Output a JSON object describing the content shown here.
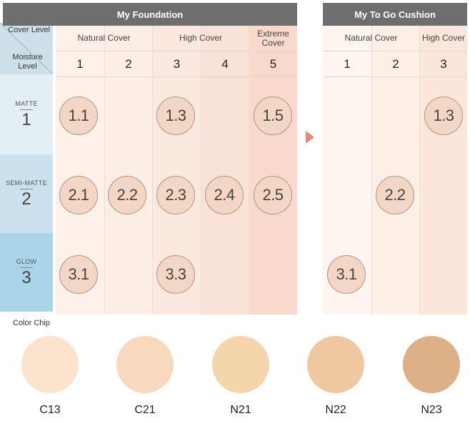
{
  "foundation": {
    "title": "My Foundation",
    "cover_groups": [
      "Natural Cover",
      "High Cover",
      "Extreme Cover"
    ],
    "cover_levels": [
      "1",
      "2",
      "3",
      "4",
      "5"
    ],
    "circles": [
      "1.1",
      "1.3",
      "1.5",
      "2.1",
      "2.2",
      "2.3",
      "2.4",
      "2.5",
      "3.1",
      "3.3"
    ]
  },
  "corner": {
    "cover_label": "Cover Level",
    "moisture_label": "Moisture Level"
  },
  "moisture": [
    {
      "name": "MATTE",
      "level": "1"
    },
    {
      "name": "SEMI-MATTE",
      "level": "2"
    },
    {
      "name": "GLOW",
      "level": "3"
    }
  ],
  "cushion": {
    "title": "My To Go Cushion",
    "cover_groups": [
      "Natural Cover",
      "High Cover"
    ],
    "cover_levels": [
      "1",
      "2",
      "3"
    ],
    "circles": [
      "1.3",
      "2.2",
      "3.1"
    ]
  },
  "color_chip": {
    "title": "Color Chip",
    "chips": [
      {
        "label": "C13",
        "color": "#fbe3ce"
      },
      {
        "label": "C21",
        "color": "#f8d9be"
      },
      {
        "label": "N21",
        "color": "#f5d6ac"
      },
      {
        "label": "N22",
        "color": "#efc7a0"
      },
      {
        "label": "N23",
        "color": "#dcb187"
      }
    ]
  },
  "colors": {
    "header_bg": "#6e6e6e",
    "arrow": "#e48a74",
    "circle_fill": "#f3d7c4"
  }
}
